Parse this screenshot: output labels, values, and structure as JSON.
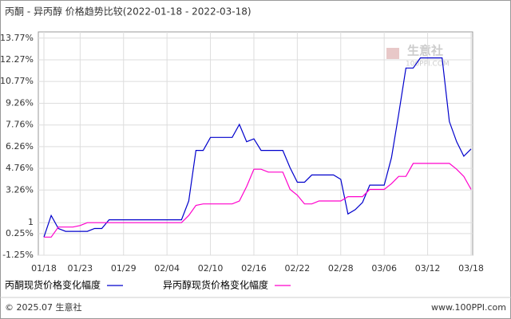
{
  "chart_data": {
    "type": "line",
    "title": "丙酮 - 异丙醇 价格趋势比较(2022-01-18 - 2022-03-18)",
    "categories": [
      "01/18",
      null,
      null,
      null,
      null,
      "01/23",
      null,
      null,
      null,
      null,
      null,
      "01/29",
      null,
      null,
      null,
      null,
      null,
      "02/04",
      null,
      null,
      null,
      null,
      null,
      "02/10",
      null,
      null,
      null,
      null,
      null,
      "02/16",
      null,
      null,
      null,
      null,
      null,
      "02/22",
      null,
      null,
      null,
      null,
      null,
      "02/28",
      null,
      null,
      null,
      null,
      null,
      "03/06",
      null,
      null,
      null,
      null,
      null,
      "03/12",
      null,
      null,
      null,
      null,
      null,
      "03/18"
    ],
    "series": [
      {
        "name": "丙酮现货价格变化幅度",
        "color": "#0000cc",
        "values": [
          0,
          1.5,
          0.6,
          0.4,
          0.4,
          0.4,
          0.4,
          0.6,
          0.6,
          1.2,
          1.2,
          1.2,
          1.2,
          1.2,
          1.2,
          1.2,
          1.2,
          1.2,
          1.2,
          1.2,
          2.5,
          6.0,
          6.0,
          6.9,
          6.9,
          6.9,
          6.9,
          7.8,
          6.6,
          6.8,
          6.0,
          6.0,
          6.0,
          6.0,
          4.8,
          3.8,
          3.8,
          4.3,
          4.3,
          4.3,
          4.3,
          4.0,
          1.6,
          1.9,
          2.4,
          3.6,
          3.6,
          3.6,
          5.5,
          8.5,
          11.7,
          11.7,
          12.4,
          12.4,
          12.4,
          12.4,
          8.0,
          6.6,
          5.6,
          6.1
        ]
      },
      {
        "name": "异丙醇现货价格变化幅度",
        "color": "#ff00cc",
        "values": [
          0,
          0,
          0.7,
          0.7,
          0.7,
          0.8,
          1.0,
          1.0,
          1.0,
          1.0,
          1.0,
          1.0,
          1.0,
          1.0,
          1.0,
          1.0,
          1.0,
          1.0,
          1.0,
          1.0,
          1.5,
          2.2,
          2.3,
          2.3,
          2.3,
          2.3,
          2.3,
          2.5,
          3.5,
          4.7,
          4.7,
          4.5,
          4.5,
          4.5,
          3.3,
          2.9,
          2.3,
          2.3,
          2.5,
          2.5,
          2.5,
          2.5,
          2.8,
          2.8,
          2.8,
          3.3,
          3.3,
          3.3,
          3.7,
          4.2,
          4.2,
          5.1,
          5.1,
          5.1,
          5.1,
          5.1,
          5.1,
          4.7,
          4.2,
          3.3
        ]
      }
    ],
    "ylim": [
      -1.25,
      14.2
    ],
    "yticks": [
      {
        "value": 13.77,
        "label": "13.77%"
      },
      {
        "value": 12.27,
        "label": "12.27%"
      },
      {
        "value": 10.77,
        "label": "10.77%"
      },
      {
        "value": 9.26,
        "label": "9.26%"
      },
      {
        "value": 7.76,
        "label": "7.76%"
      },
      {
        "value": 6.26,
        "label": "6.26%"
      },
      {
        "value": 4.76,
        "label": "4.76%"
      },
      {
        "value": 3.26,
        "label": "3.26%"
      },
      1,
      {
        "value": 0.25,
        "label": "0.25%"
      },
      {
        "value": -1.25,
        "label": "-1.25%"
      }
    ],
    "grid": true,
    "legend": "bottom",
    "watermark": {
      "name": "生意社",
      "site": "100PPI.COM"
    },
    "footer": {
      "copyright": "© 2025.07 生意社",
      "site": "www.100PPI.com"
    }
  }
}
